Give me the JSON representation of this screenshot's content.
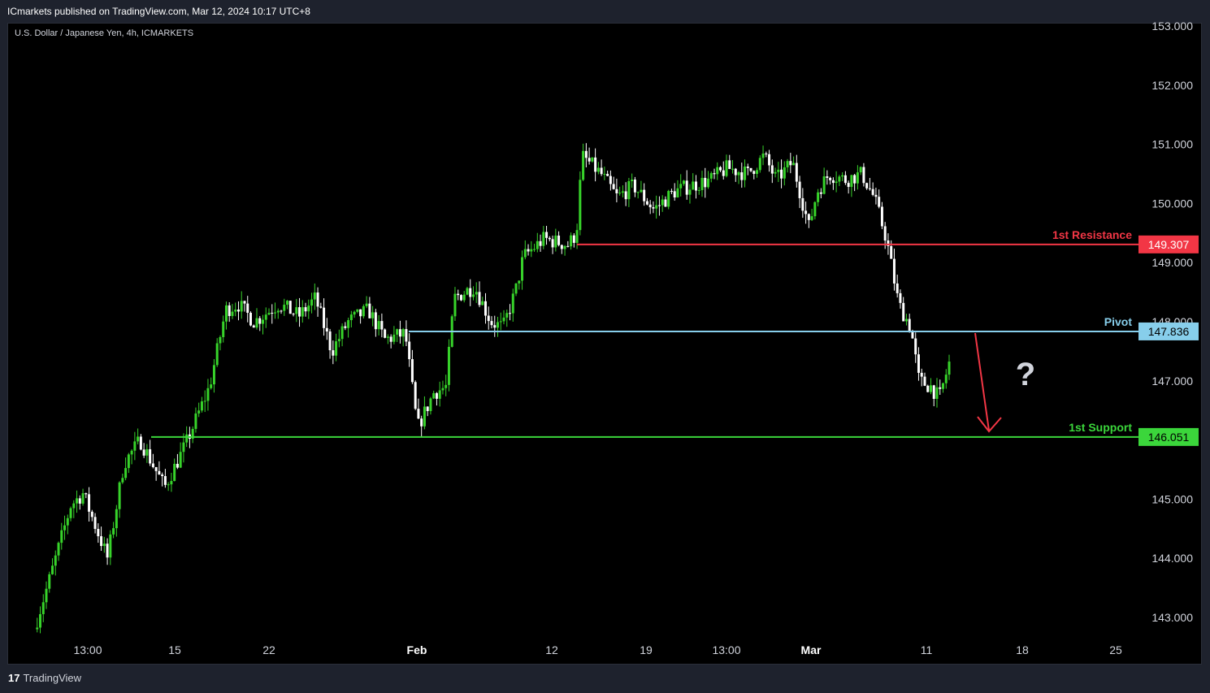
{
  "header": {
    "published": "ICmarkets published on TradingView.com, Mar 12, 2024 10:17 UTC+8"
  },
  "symbol": "U.S. Dollar / Japanese Yen, 4h, ICMARKETS",
  "footer": {
    "logo_mark": "17",
    "logo_text": "TradingView"
  },
  "annotation": {
    "question": "?"
  },
  "colors": {
    "up": "#37d32a",
    "down": "#ffffff",
    "resistance": "#f23645",
    "pivot": "#87ceeb",
    "support": "#3bd63b",
    "arrow": "#f23645"
  },
  "chart_data": {
    "type": "candlestick",
    "title": "U.S. Dollar / Japanese Yen, 4h, ICMARKETS",
    "y_ticks": [
      "153.000",
      "152.000",
      "151.000",
      "150.000",
      "149.000",
      "148.000",
      "147.000",
      "146.000",
      "145.000",
      "144.000",
      "143.000"
    ],
    "ylim": [
      142.6,
      153.3
    ],
    "x_ticks": [
      {
        "label": "13:00",
        "major": false
      },
      {
        "label": "15",
        "major": false
      },
      {
        "label": "22",
        "major": false
      },
      {
        "label": "Feb",
        "major": true
      },
      {
        "label": "12",
        "major": false
      },
      {
        "label": "19",
        "major": false
      },
      {
        "label": "13:00",
        "major": false
      },
      {
        "label": "Mar",
        "major": true
      },
      {
        "label": "11",
        "major": false
      },
      {
        "label": "18",
        "major": false
      },
      {
        "label": "25",
        "major": false
      }
    ],
    "levels": [
      {
        "name": "1st Resistance",
        "value": "149.307",
        "price": 149.307
      },
      {
        "name": "Pivot",
        "value": "147.836",
        "price": 147.836
      },
      {
        "name": "1st Support",
        "value": "146.051",
        "price": 146.051
      }
    ],
    "close_path": [
      [
        0,
        142.8
      ],
      [
        20,
        143.7
      ],
      [
        45,
        144.9
      ],
      [
        60,
        145.1
      ],
      [
        90,
        144.0
      ],
      [
        110,
        145.6
      ],
      [
        130,
        146.0
      ],
      [
        160,
        145.2
      ],
      [
        185,
        145.9
      ],
      [
        215,
        146.9
      ],
      [
        235,
        148.2
      ],
      [
        250,
        148.3
      ],
      [
        270,
        148.0
      ],
      [
        300,
        148.3
      ],
      [
        325,
        148.1
      ],
      [
        345,
        148.4
      ],
      [
        365,
        147.5
      ],
      [
        385,
        148.0
      ],
      [
        410,
        148.2
      ],
      [
        430,
        147.7
      ],
      [
        455,
        147.8
      ],
      [
        470,
        146.2
      ],
      [
        490,
        146.8
      ],
      [
        505,
        146.9
      ],
      [
        515,
        148.4
      ],
      [
        540,
        148.6
      ],
      [
        560,
        148.0
      ],
      [
        575,
        147.9
      ],
      [
        590,
        148.5
      ],
      [
        600,
        149.1
      ],
      [
        625,
        149.4
      ],
      [
        655,
        149.3
      ],
      [
        665,
        149.5
      ],
      [
        672,
        150.8
      ],
      [
        695,
        150.5
      ],
      [
        715,
        150.1
      ],
      [
        735,
        150.3
      ],
      [
        760,
        149.9
      ],
      [
        785,
        150.2
      ],
      [
        805,
        150.3
      ],
      [
        830,
        150.4
      ],
      [
        850,
        150.6
      ],
      [
        875,
        150.5
      ],
      [
        895,
        150.8
      ],
      [
        910,
        150.4
      ],
      [
        930,
        150.7
      ],
      [
        950,
        149.6
      ],
      [
        960,
        150.2
      ],
      [
        975,
        150.5
      ],
      [
        995,
        150.4
      ],
      [
        1015,
        150.5
      ],
      [
        1030,
        150.1
      ],
      [
        1045,
        149.4
      ],
      [
        1060,
        148.3
      ],
      [
        1075,
        147.9
      ],
      [
        1085,
        147.0
      ],
      [
        1100,
        146.9
      ],
      [
        1110,
        146.7
      ],
      [
        1122,
        147.3
      ]
    ]
  }
}
